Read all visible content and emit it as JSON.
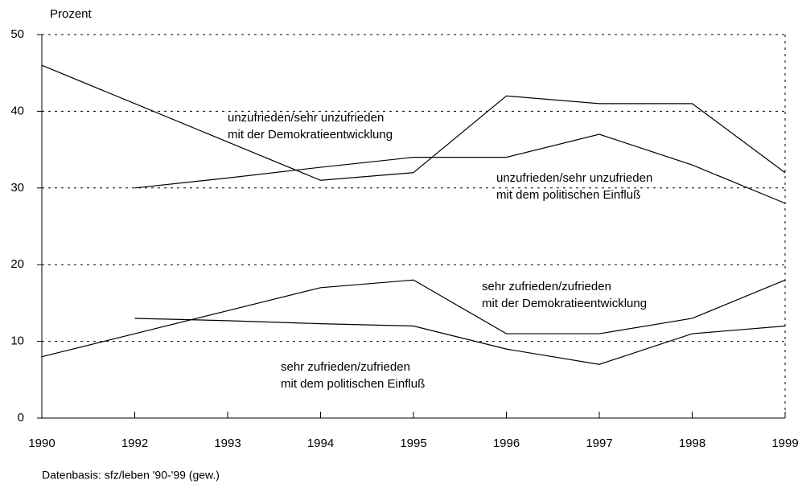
{
  "chart_data": {
    "type": "line",
    "y_label": "Prozent",
    "source": "Datenbasis: sfz/leben '90-'99 (gew.)",
    "categories": [
      "1990",
      "1992",
      "1993",
      "1994",
      "1995",
      "1996",
      "1997",
      "1998",
      "1999"
    ],
    "ylim": [
      0,
      50
    ],
    "yticks": [
      0,
      10,
      20,
      30,
      40,
      50
    ],
    "grid": true,
    "series": [
      {
        "label": [
          "unzufrieden/sehr unzufrieden",
          "mit der Demokratieentwicklung"
        ],
        "color": "#000000",
        "values": [
          46,
          41,
          36,
          31,
          32,
          42,
          41,
          41,
          32
        ]
      },
      {
        "label": [
          "unzufrieden/sehr unzufrieden",
          "mit dem politischen Einfluß"
        ],
        "color": "#000000",
        "values": [
          null,
          30,
          31.3,
          32.7,
          34,
          34,
          37,
          33,
          28
        ]
      },
      {
        "label": [
          "sehr zufrieden/zufrieden",
          "mit der Demokratieentwicklung"
        ],
        "color": "#000000",
        "values": [
          8,
          11,
          14,
          17,
          18,
          11,
          11,
          13,
          18
        ]
      },
      {
        "label": [
          "sehr zufrieden/zufrieden",
          "mit dem politischen Einfluß"
        ],
        "color": "#000000",
        "values": [
          null,
          13,
          12.7,
          12.3,
          12,
          9,
          7,
          11,
          12
        ]
      }
    ]
  }
}
